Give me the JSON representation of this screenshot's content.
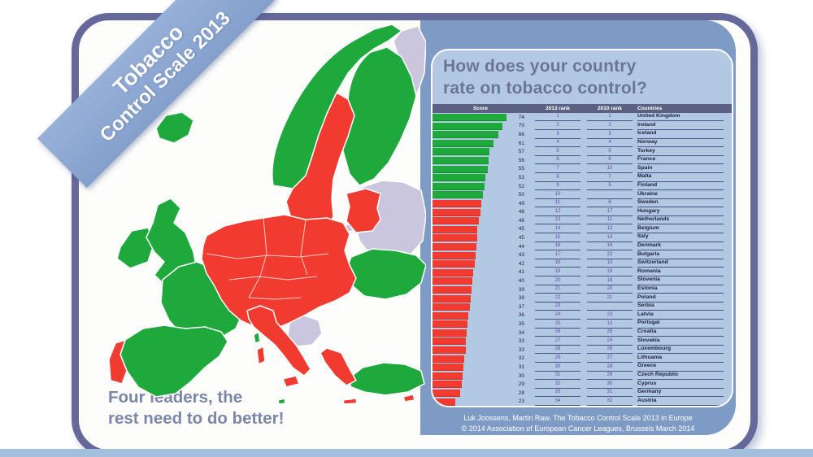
{
  "ribbon": {
    "line1": "Tobacco",
    "line2": "Control Scale 2013"
  },
  "map": {
    "caption_line1": "Four leaders, the",
    "caption_line2": "rest need to do better!",
    "colors": {
      "high_score_green": "#1fa83c",
      "low_score_red": "#f13b30",
      "not_in_scale": "#c9c6dd"
    }
  },
  "panel": {
    "title_line1": "How does your country",
    "title_line2": "rate on tobacco control?",
    "table": {
      "headers": [
        "Score",
        "2013 rank",
        "2010 rank",
        "Countries"
      ],
      "rows": [
        {
          "score": 74,
          "rank2013": "1",
          "rank2010": "1",
          "country": "United Kingdom",
          "color": "green"
        },
        {
          "score": 70,
          "rank2013": "2",
          "rank2010": "2",
          "country": "Ireland",
          "color": "green"
        },
        {
          "score": 66,
          "rank2013": "3",
          "rank2010": "3",
          "country": "Iceland",
          "color": "green"
        },
        {
          "score": 61,
          "rank2013": "4",
          "rank2010": "4",
          "country": "Norway",
          "color": "green"
        },
        {
          "score": 57,
          "rank2013": "5",
          "rank2010": "9",
          "country": "Turkey",
          "color": "green"
        },
        {
          "score": 56,
          "rank2013": "6",
          "rank2010": "6",
          "country": "France",
          "color": "green"
        },
        {
          "score": 55,
          "rank2013": "7",
          "rank2010": "10",
          "country": "Spain",
          "color": "green"
        },
        {
          "score": 53,
          "rank2013": "8",
          "rank2010": "7",
          "country": "Malta",
          "color": "green"
        },
        {
          "score": 52,
          "rank2013": "9",
          "rank2010": "5",
          "country": "Finland",
          "color": "green"
        },
        {
          "score": 50,
          "rank2013": "10",
          "rank2010": "",
          "country": "Ukraine",
          "color": "green"
        },
        {
          "score": 49,
          "rank2013": "11",
          "rank2010": "8",
          "country": "Sweden",
          "color": "red"
        },
        {
          "score": 48,
          "rank2013": "12",
          "rank2010": "17",
          "country": "Hungary",
          "color": "red"
        },
        {
          "score": 46,
          "rank2013": "13",
          "rank2010": "11",
          "country": "Netherlands",
          "color": "red"
        },
        {
          "score": 45,
          "rank2013": "14",
          "rank2010": "12",
          "country": "Belgium",
          "color": "red"
        },
        {
          "score": 45,
          "rank2013": "15",
          "rank2010": "14",
          "country": "Italy",
          "color": "red"
        },
        {
          "score": 44,
          "rank2013": "16",
          "rank2010": "16",
          "country": "Denmark",
          "color": "red"
        },
        {
          "score": 43,
          "rank2013": "17",
          "rank2010": "22",
          "country": "Bulgaria",
          "color": "red"
        },
        {
          "score": 42,
          "rank2013": "18",
          "rank2010": "15",
          "country": "Switzerland",
          "color": "red"
        },
        {
          "score": 41,
          "rank2013": "19",
          "rank2010": "19",
          "country": "Romania",
          "color": "red"
        },
        {
          "score": 40,
          "rank2013": "20",
          "rank2010": "18",
          "country": "Slovenia",
          "color": "red"
        },
        {
          "score": 39,
          "rank2013": "21",
          "rank2010": "20",
          "country": "Estonia",
          "color": "red"
        },
        {
          "score": 38,
          "rank2013": "22",
          "rank2010": "21",
          "country": "Poland",
          "color": "red"
        },
        {
          "score": 37,
          "rank2013": "23",
          "rank2010": "",
          "country": "Serbia",
          "color": "red"
        },
        {
          "score": 36,
          "rank2013": "24",
          "rank2010": "23",
          "country": "Latvia",
          "color": "red"
        },
        {
          "score": 35,
          "rank2013": "25",
          "rank2010": "13",
          "country": "Portugal",
          "color": "red"
        },
        {
          "score": 34,
          "rank2013": "26",
          "rank2010": "25",
          "country": "Croatia",
          "color": "red"
        },
        {
          "score": 33,
          "rank2013": "27",
          "rank2010": "24",
          "country": "Slovakia",
          "color": "red"
        },
        {
          "score": 33,
          "rank2013": "28",
          "rank2010": "26",
          "country": "Luxembourg",
          "color": "red"
        },
        {
          "score": 32,
          "rank2013": "29",
          "rank2010": "27",
          "country": "Lithuania",
          "color": "red"
        },
        {
          "score": 31,
          "rank2013": "30",
          "rank2010": "28",
          "country": "Greece",
          "color": "red"
        },
        {
          "score": 30,
          "rank2013": "31",
          "rank2010": "29",
          "country": "Czech Republic",
          "color": "red"
        },
        {
          "score": 29,
          "rank2013": "32",
          "rank2010": "30",
          "country": "Cyprus",
          "color": "red"
        },
        {
          "score": 28,
          "rank2013": "33",
          "rank2010": "31",
          "country": "Germany",
          "color": "red"
        },
        {
          "score": 23,
          "rank2013": "34",
          "rank2010": "32",
          "country": "Austria",
          "color": "red"
        }
      ]
    }
  },
  "footer": {
    "line1": "Luk Joossens, Martin Raw. The Tobacco Control Scale 2013 in Europe",
    "line2": "© 2014 Association of European Cancer Leagues, Brussels March 2014"
  },
  "chart_data": {
    "type": "bar",
    "title": "How does your country rate on tobacco control?",
    "xlabel": "Score",
    "ylabel": "Country",
    "xlim": [
      0,
      80
    ],
    "orientation": "horizontal",
    "legend_position": "none",
    "grid": false,
    "categories": [
      "United Kingdom",
      "Ireland",
      "Iceland",
      "Norway",
      "Turkey",
      "France",
      "Spain",
      "Malta",
      "Finland",
      "Ukraine",
      "Sweden",
      "Hungary",
      "Netherlands",
      "Belgium",
      "Italy",
      "Denmark",
      "Bulgaria",
      "Switzerland",
      "Romania",
      "Slovenia",
      "Estonia",
      "Poland",
      "Serbia",
      "Latvia",
      "Portugal",
      "Croatia",
      "Slovakia",
      "Luxembourg",
      "Lithuania",
      "Greece",
      "Czech Republic",
      "Cyprus",
      "Germany",
      "Austria"
    ],
    "values": [
      74,
      70,
      66,
      61,
      57,
      56,
      55,
      53,
      52,
      50,
      49,
      48,
      46,
      45,
      45,
      44,
      43,
      42,
      41,
      40,
      39,
      38,
      37,
      36,
      35,
      34,
      33,
      33,
      32,
      31,
      30,
      29,
      28,
      23
    ],
    "series": [
      {
        "name": "2013 rank",
        "values": [
          1,
          2,
          3,
          4,
          5,
          6,
          7,
          8,
          9,
          10,
          11,
          12,
          13,
          14,
          15,
          16,
          17,
          18,
          19,
          20,
          21,
          22,
          23,
          24,
          25,
          26,
          27,
          28,
          29,
          30,
          31,
          32,
          33,
          34
        ]
      },
      {
        "name": "2010 rank",
        "values": [
          1,
          2,
          3,
          4,
          9,
          6,
          10,
          7,
          5,
          null,
          8,
          17,
          11,
          12,
          14,
          16,
          22,
          15,
          19,
          18,
          20,
          21,
          null,
          23,
          13,
          25,
          24,
          26,
          27,
          28,
          29,
          30,
          31,
          32
        ]
      }
    ],
    "bar_color_rule": "green for top 10 (score >= 50), red otherwise"
  }
}
